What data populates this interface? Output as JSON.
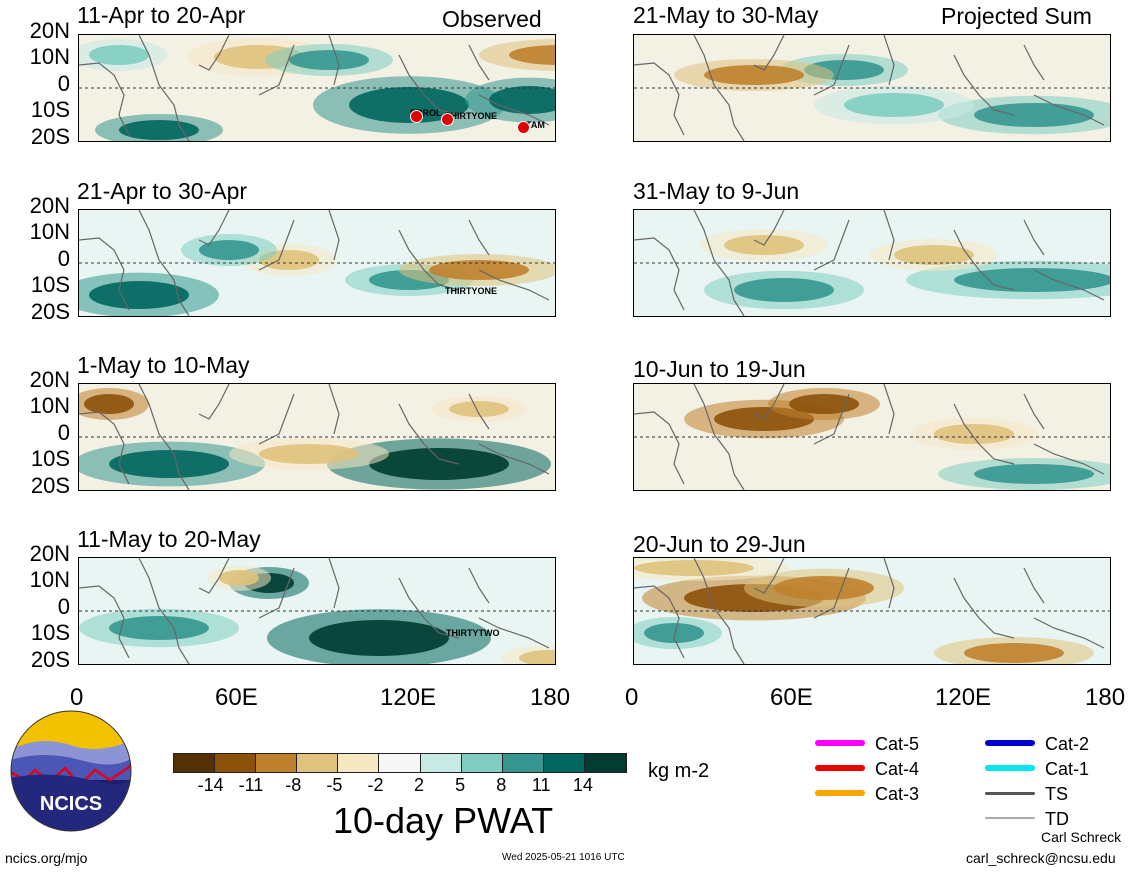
{
  "header": {
    "observed_label": "Observed",
    "projected_label": "Projected Sum"
  },
  "lat_labels": [
    "20N",
    "10N",
    "0",
    "10S",
    "20S"
  ],
  "lon_labels": [
    "0",
    "60E",
    "120E",
    "180"
  ],
  "panels": {
    "observed": [
      {
        "title": "11-Apr to 20-Apr",
        "storms": [
          "ERROL",
          "THIRTYONE",
          "TAM"
        ]
      },
      {
        "title": "21-Apr to 30-Apr",
        "storms": [
          "THIRTYONE"
        ]
      },
      {
        "title": "1-May to 10-May",
        "storms": []
      },
      {
        "title": "11-May to 20-May",
        "storms": [
          "THIRTYTWO"
        ]
      }
    ],
    "projected": [
      {
        "title": "21-May to 30-May"
      },
      {
        "title": "31-May to 9-Jun"
      },
      {
        "title": "10-Jun to 19-Jun"
      },
      {
        "title": "20-Jun to 29-Jun"
      }
    ]
  },
  "colorbar": {
    "ticks": [
      "-14",
      "-11",
      "-8",
      "-5",
      "-2",
      "2",
      "5",
      "8",
      "11",
      "14"
    ],
    "colors": [
      "#543005",
      "#8c510a",
      "#bf812d",
      "#dfc27d",
      "#f6e8c3",
      "#f7f7f7",
      "#c7eae5",
      "#80cdc1",
      "#35978f",
      "#01665e",
      "#003c30"
    ],
    "units": "kg m-2",
    "title": "10-day PWAT"
  },
  "legend": [
    {
      "label": "Cat-5",
      "color": "#ff00ff"
    },
    {
      "label": "Cat-4",
      "color": "#ee0000"
    },
    {
      "label": "Cat-3",
      "color": "#ffa500"
    },
    {
      "label": "Cat-2",
      "color": "#0000cc"
    },
    {
      "label": "Cat-1",
      "color": "#00e5ee"
    },
    {
      "label": "TS",
      "color": "#555555"
    },
    {
      "label": "TD",
      "color": "#aaaaaa"
    }
  ],
  "logo": {
    "text": "NCICS"
  },
  "footer": {
    "url": "ncics.org/mjo",
    "timestamp": "Wed 2025-05-21 1016 UTC",
    "author": "Carl Schreck",
    "email": "carl_schreck@ncsu.edu"
  }
}
